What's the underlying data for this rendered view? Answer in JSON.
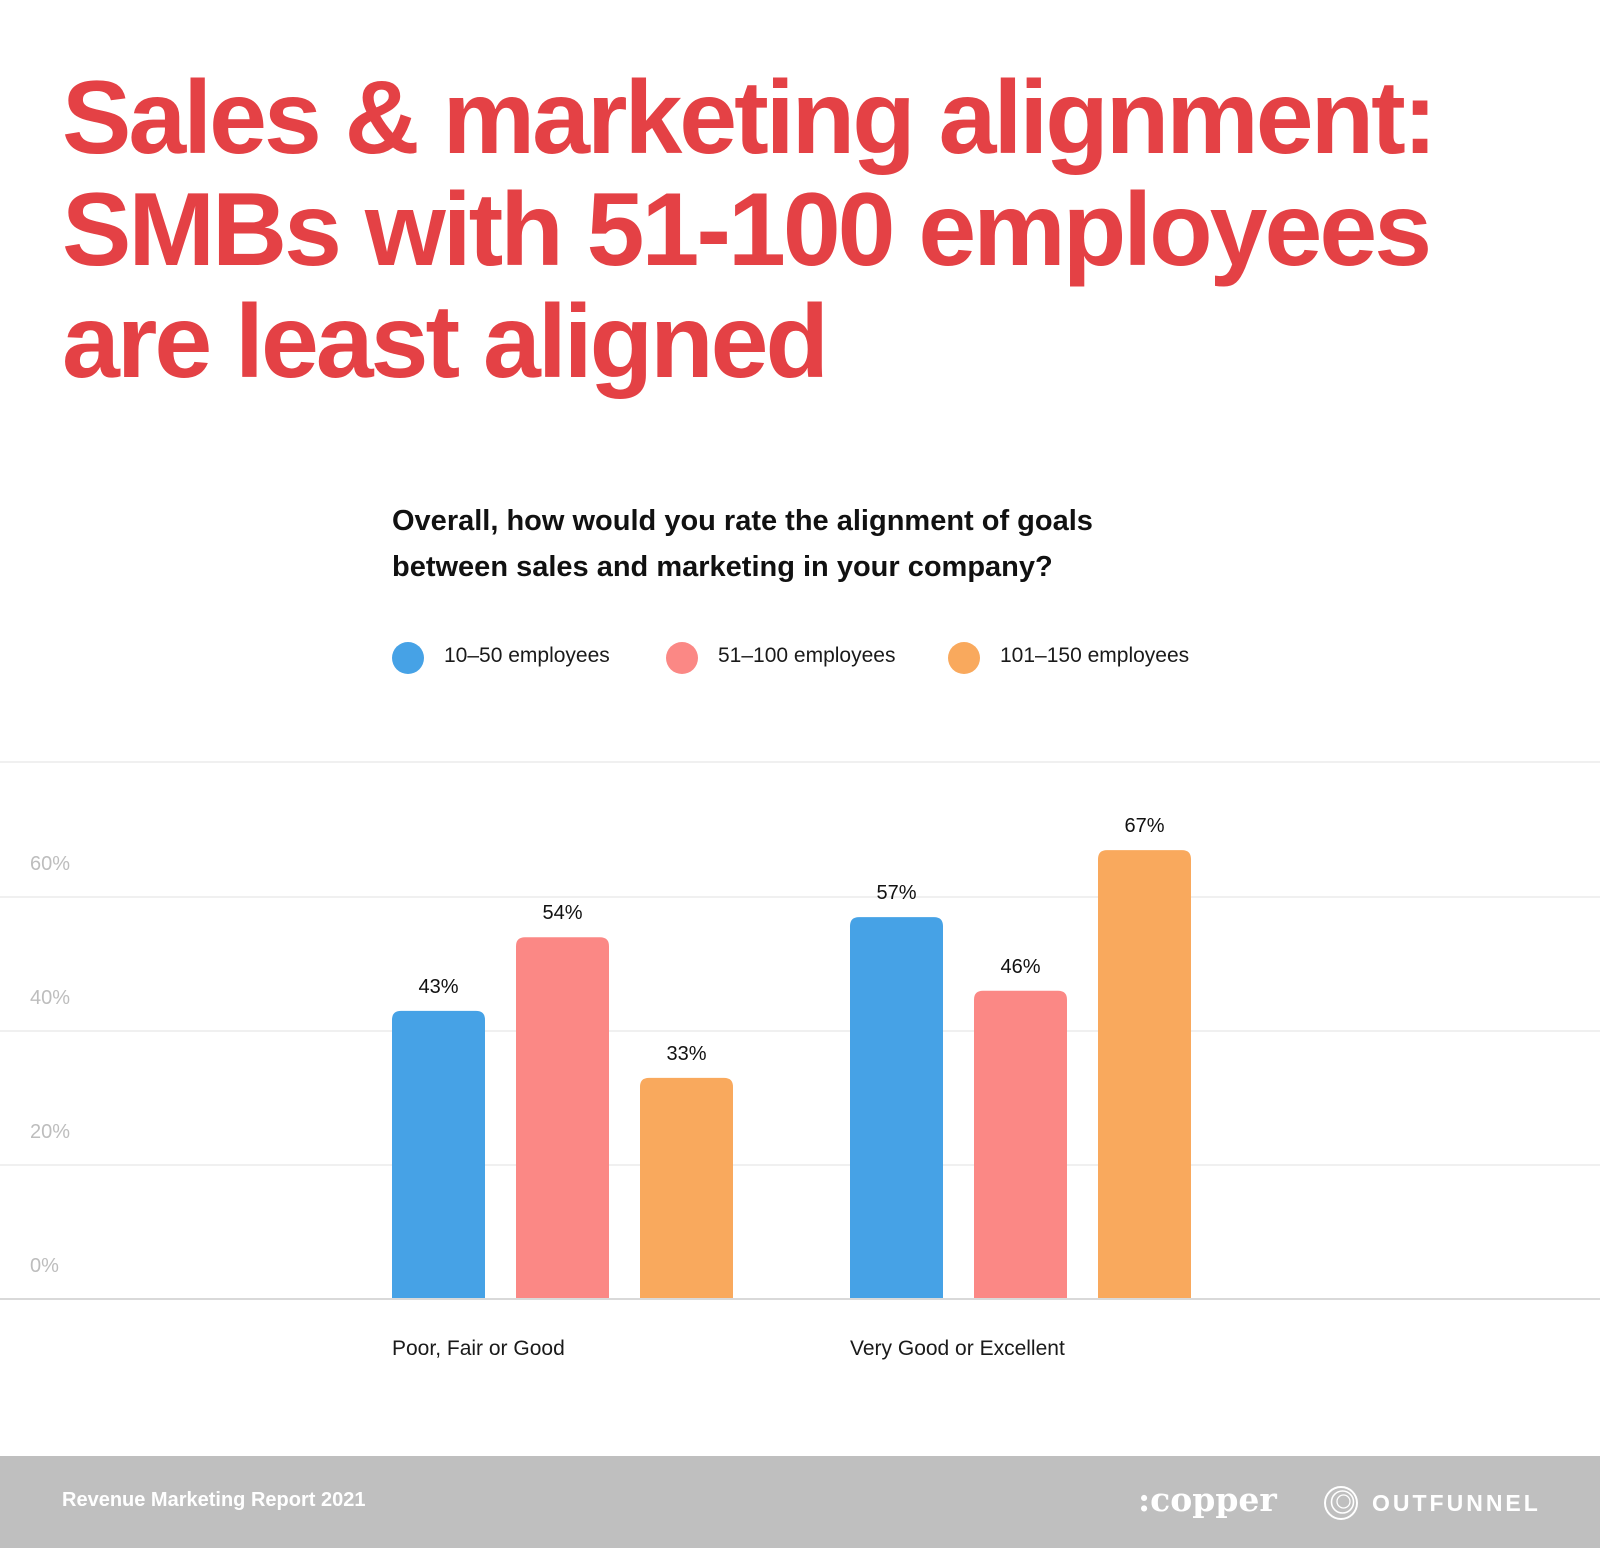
{
  "title_lines": [
    "Sales & marketing alignment:",
    "SMBs with 51-100 employees",
    "are least aligned"
  ],
  "question_lines": [
    "Overall, how would you rate the alignment of goals",
    "between sales and marketing in your company?"
  ],
  "colors": {
    "title": "#e44145",
    "series": [
      "#46a2e6",
      "#fb8885",
      "#f9a95d"
    ],
    "grid": "#ececec",
    "axis": "#d9d9d9",
    "tick": "#bdbdbd",
    "footer_bg": "#bfbfbf"
  },
  "chart_data": {
    "type": "bar",
    "categories": [
      "Poor, Fair or Good",
      "Very Good or Excellent"
    ],
    "series": [
      {
        "name": "10–50 employees",
        "values": [
          43,
          57
        ],
        "labels": [
          "43%",
          "57%"
        ]
      },
      {
        "name": "51–100 employees",
        "values": [
          54,
          46
        ],
        "labels": [
          "54%",
          "46%"
        ]
      },
      {
        "name": "101–150 employees",
        "values": [
          33,
          67
        ],
        "labels": [
          "33%",
          "67%"
        ]
      }
    ],
    "yticks": [
      0,
      20,
      40,
      60
    ],
    "ytick_labels": [
      "0%",
      "20%",
      "40%",
      "60%"
    ],
    "ylim": [
      0,
      80
    ],
    "grid": true,
    "legend_position": "top"
  },
  "footer": {
    "report": "Revenue Marketing Report 2021",
    "logo_copper": ":copper",
    "logo_outfunnel": "OUTFUNNEL",
    "outfunnel_icon": "outfunnel-circle-icon"
  }
}
